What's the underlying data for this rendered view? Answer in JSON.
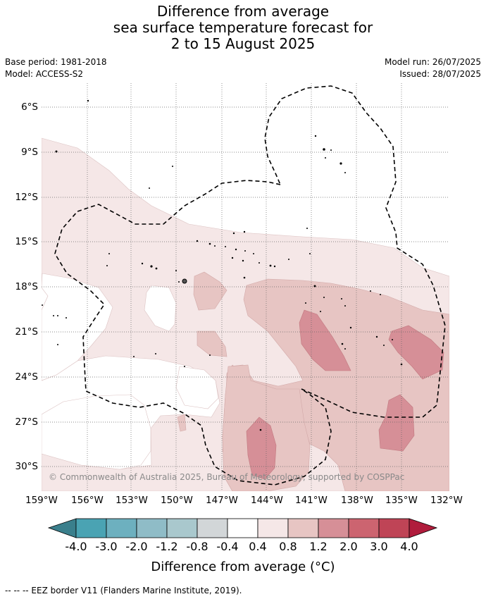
{
  "title": {
    "line1": "Difference from average",
    "line2": "sea surface temperature forecast for",
    "line3": "2 to 15 August 2025"
  },
  "meta": {
    "base_period": "Base period: 1981-2018",
    "model": "Model: ACCESS-S2",
    "model_run": "Model run: 26/07/2025",
    "issued": "Issued: 28/07/2025"
  },
  "axes": {
    "lat_labels": [
      "6°S",
      "9°S",
      "12°S",
      "15°S",
      "18°S",
      "21°S",
      "24°S",
      "27°S",
      "30°S"
    ],
    "lon_labels": [
      "159°W",
      "156°W",
      "153°W",
      "150°W",
      "147°W",
      "144°W",
      "141°W",
      "138°W",
      "135°W",
      "132°W"
    ]
  },
  "copyright": "© Commonwealth of Australia 2025, Bureau of Meteorology, supported by COSPPac",
  "colorbar": {
    "title": "Difference from average (°C)",
    "labels": [
      "-4.0",
      "-3.0",
      "-2.0",
      "-1.2",
      "-0.8",
      "-0.4",
      "0.4",
      "0.8",
      "1.2",
      "2.0",
      "3.0",
      "4.0"
    ],
    "colors": {
      "below_-4": "#3a7f8c",
      "-4_-3": "#4aa3b3",
      "-3_-2": "#6db0bf",
      "-2_-1.2": "#8fbcc7",
      "-1.2_-0.8": "#a9c8cd",
      "-0.8_-0.4": "#d2d6d8",
      "-0.4_0.4": "#ffffff",
      "0.4_0.8": "#f5e7e7",
      "0.8_1.2": "#e7c5c3",
      "1.2_2.0": "#d68f97",
      "2.0_3.0": "#cc6470",
      "3.0_4.0": "#bf4456",
      "above_4": "#b01c3c"
    }
  },
  "legend_note": "--  --  -- EEZ border V11 (Flanders Marine Institute, 2019)."
}
